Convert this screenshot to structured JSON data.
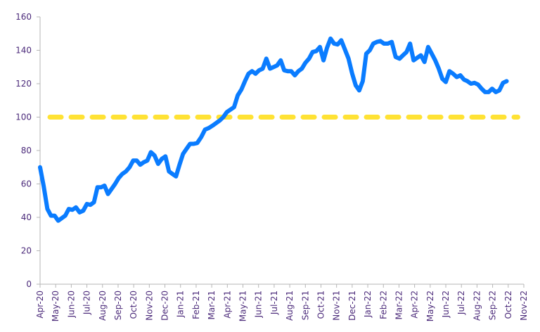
{
  "chart_data": {
    "type": "line",
    "title": "",
    "xlabel": "",
    "ylabel": "",
    "ylim": [
      0,
      160
    ],
    "yticks": [
      "0",
      "20",
      "40",
      "60",
      "80",
      "100",
      "120",
      "140",
      "160"
    ],
    "xticks": [
      "Apr-20",
      "May-20",
      "Jun-20",
      "Jul-20",
      "Aug-20",
      "Sep-20",
      "Oct-20",
      "Nov-20",
      "Dec-20",
      "Jan-21",
      "Feb-21",
      "Mar-21",
      "Apr-21",
      "May-21",
      "Jun-21",
      "Jul-21",
      "Aug-21",
      "Sep-21",
      "Oct-21",
      "Nov-21",
      "Dec-21",
      "Jan-22",
      "Feb-22",
      "Mar-22",
      "Apr-22",
      "May-22",
      "Jun-22",
      "Jul-22",
      "Aug-22",
      "Sep-22",
      "Oct-22",
      "Nov-22"
    ],
    "grid": false,
    "legend": "none",
    "colors": {
      "series": "#0a7cff",
      "reference": "#ffe234",
      "axis_text": "#4b2a7a",
      "axis_line": "#b5b5b5"
    },
    "reference_line": {
      "value": 100,
      "style": "dashed",
      "from": "2020-04-20",
      "to": "2022-10-20"
    },
    "series": [
      {
        "x": [
          "2020-04-01",
          "2020-04-08",
          "2020-04-15",
          "2020-04-22",
          "2020-04-29",
          "2020-05-06",
          "2020-05-13",
          "2020-05-20",
          "2020-05-27",
          "2020-06-03",
          "2020-06-10",
          "2020-06-17",
          "2020-06-24",
          "2020-07-01",
          "2020-07-08",
          "2020-07-15",
          "2020-07-22",
          "2020-07-29",
          "2020-08-05",
          "2020-08-12",
          "2020-08-19",
          "2020-08-26",
          "2020-09-02",
          "2020-09-09",
          "2020-09-16",
          "2020-09-23",
          "2020-09-30",
          "2020-10-07",
          "2020-10-14",
          "2020-10-21",
          "2020-10-28",
          "2020-11-04",
          "2020-11-11",
          "2020-11-18",
          "2020-11-25",
          "2020-12-02",
          "2020-12-09",
          "2020-12-16",
          "2020-12-23",
          "2020-12-30",
          "2021-01-06",
          "2021-01-13",
          "2021-01-20",
          "2021-01-27",
          "2021-02-03",
          "2021-02-10",
          "2021-02-17",
          "2021-02-24",
          "2021-03-03",
          "2021-03-10",
          "2021-03-17",
          "2021-03-24",
          "2021-03-31",
          "2021-04-07",
          "2021-04-14",
          "2021-04-21",
          "2021-04-28",
          "2021-05-05",
          "2021-05-12",
          "2021-05-19",
          "2021-05-26",
          "2021-06-02",
          "2021-06-09",
          "2021-06-16",
          "2021-06-23",
          "2021-06-30",
          "2021-07-07",
          "2021-07-14",
          "2021-07-21",
          "2021-07-28",
          "2021-08-04",
          "2021-08-11",
          "2021-08-18",
          "2021-08-25",
          "2021-09-01",
          "2021-09-08",
          "2021-09-15",
          "2021-09-22",
          "2021-09-29",
          "2021-10-06",
          "2021-10-13",
          "2021-10-20",
          "2021-10-27",
          "2021-11-03",
          "2021-11-10",
          "2021-11-17",
          "2021-11-24",
          "2021-12-01",
          "2021-12-08",
          "2021-12-15",
          "2021-12-22",
          "2021-12-29",
          "2022-01-05",
          "2022-01-12",
          "2022-01-19",
          "2022-01-26",
          "2022-02-02",
          "2022-02-09",
          "2022-02-16",
          "2022-02-23",
          "2022-03-02",
          "2022-03-09",
          "2022-03-16",
          "2022-03-23",
          "2022-03-30",
          "2022-04-06",
          "2022-04-13",
          "2022-04-20",
          "2022-04-27",
          "2022-05-04",
          "2022-05-11",
          "2022-05-18",
          "2022-05-25",
          "2022-06-01",
          "2022-06-08",
          "2022-06-15",
          "2022-06-22",
          "2022-06-29",
          "2022-07-06",
          "2022-07-13",
          "2022-07-20",
          "2022-07-27",
          "2022-08-03",
          "2022-08-10",
          "2022-08-17",
          "2022-08-24",
          "2022-08-31",
          "2022-09-07",
          "2022-09-14",
          "2022-09-21",
          "2022-09-28"
        ],
        "y": [
          70,
          58.5,
          45,
          41,
          41,
          38,
          39.5,
          41,
          45,
          44.5,
          46,
          43,
          44,
          48,
          47.5,
          49,
          58,
          58,
          59,
          54,
          57,
          60,
          63.5,
          66,
          67.5,
          70,
          74,
          74,
          71.5,
          73,
          74,
          79,
          77,
          72,
          75,
          76.5,
          67.5,
          66,
          64.5,
          71.5,
          78,
          81,
          84,
          84,
          84.5,
          88,
          92.5,
          93.5,
          95,
          96.5,
          98,
          100,
          103,
          104.5,
          106,
          113,
          116.5,
          121.5,
          126,
          127.5,
          126,
          128,
          129,
          135,
          129,
          130,
          131,
          134,
          128,
          127.5,
          127.5,
          125,
          127.5,
          129,
          132.5,
          135,
          139,
          139.5,
          142,
          134,
          141.5,
          147,
          144,
          143.5,
          146,
          140.5,
          135,
          126,
          119,
          116,
          121.5,
          138,
          140,
          144,
          145,
          145.5,
          144,
          144,
          145,
          136,
          135,
          137,
          139,
          144,
          134,
          135.5,
          137,
          133,
          142,
          138,
          134,
          129,
          123,
          121,
          127.5,
          126,
          124,
          125,
          122.5,
          121.5,
          120,
          120.5,
          119.5,
          117,
          115,
          115,
          117,
          115,
          116,
          120.5,
          121.5
        ]
      }
    ]
  }
}
